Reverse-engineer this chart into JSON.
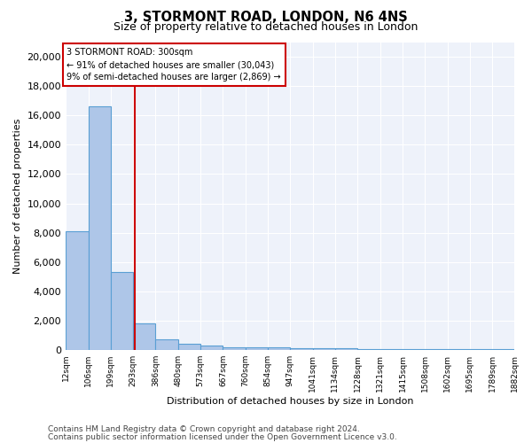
{
  "title": "3, STORMONT ROAD, LONDON, N6 4NS",
  "subtitle": "Size of property relative to detached houses in London",
  "xlabel": "Distribution of detached houses by size in London",
  "ylabel": "Number of detached properties",
  "footer_line1": "Contains HM Land Registry data © Crown copyright and database right 2024.",
  "footer_line2": "Contains public sector information licensed under the Open Government Licence v3.0.",
  "bar_edges": [
    12,
    106,
    199,
    293,
    386,
    480,
    573,
    667,
    760,
    854,
    947,
    1041,
    1134,
    1228,
    1321,
    1415,
    1508,
    1602,
    1695,
    1789,
    1882
  ],
  "bar_heights": [
    8100,
    16600,
    5300,
    1800,
    700,
    400,
    300,
    200,
    200,
    150,
    100,
    100,
    100,
    75,
    75,
    50,
    50,
    50,
    50,
    50
  ],
  "bar_color": "#aec6e8",
  "bar_edge_color": "#5a9fd4",
  "bar_linewidth": 0.8,
  "red_line_x": 300,
  "red_line_color": "#cc0000",
  "annotation_text": "3 STORMONT ROAD: 300sqm\n← 91% of detached houses are smaller (30,043)\n9% of semi-detached houses are larger (2,869) →",
  "ylim": [
    0,
    21000
  ],
  "yticks": [
    0,
    2000,
    4000,
    6000,
    8000,
    10000,
    12000,
    14000,
    16000,
    18000,
    20000
  ],
  "tick_labels": [
    "12sqm",
    "106sqm",
    "199sqm",
    "293sqm",
    "386sqm",
    "480sqm",
    "573sqm",
    "667sqm",
    "760sqm",
    "854sqm",
    "947sqm",
    "1041sqm",
    "1134sqm",
    "1228sqm",
    "1321sqm",
    "1415sqm",
    "1508sqm",
    "1602sqm",
    "1695sqm",
    "1789sqm",
    "1882sqm"
  ],
  "background_color": "#eef2fa",
  "title_fontsize": 10.5,
  "subtitle_fontsize": 9,
  "axis_fontsize": 8,
  "tick_fontsize": 6.5,
  "footer_fontsize": 6.5
}
